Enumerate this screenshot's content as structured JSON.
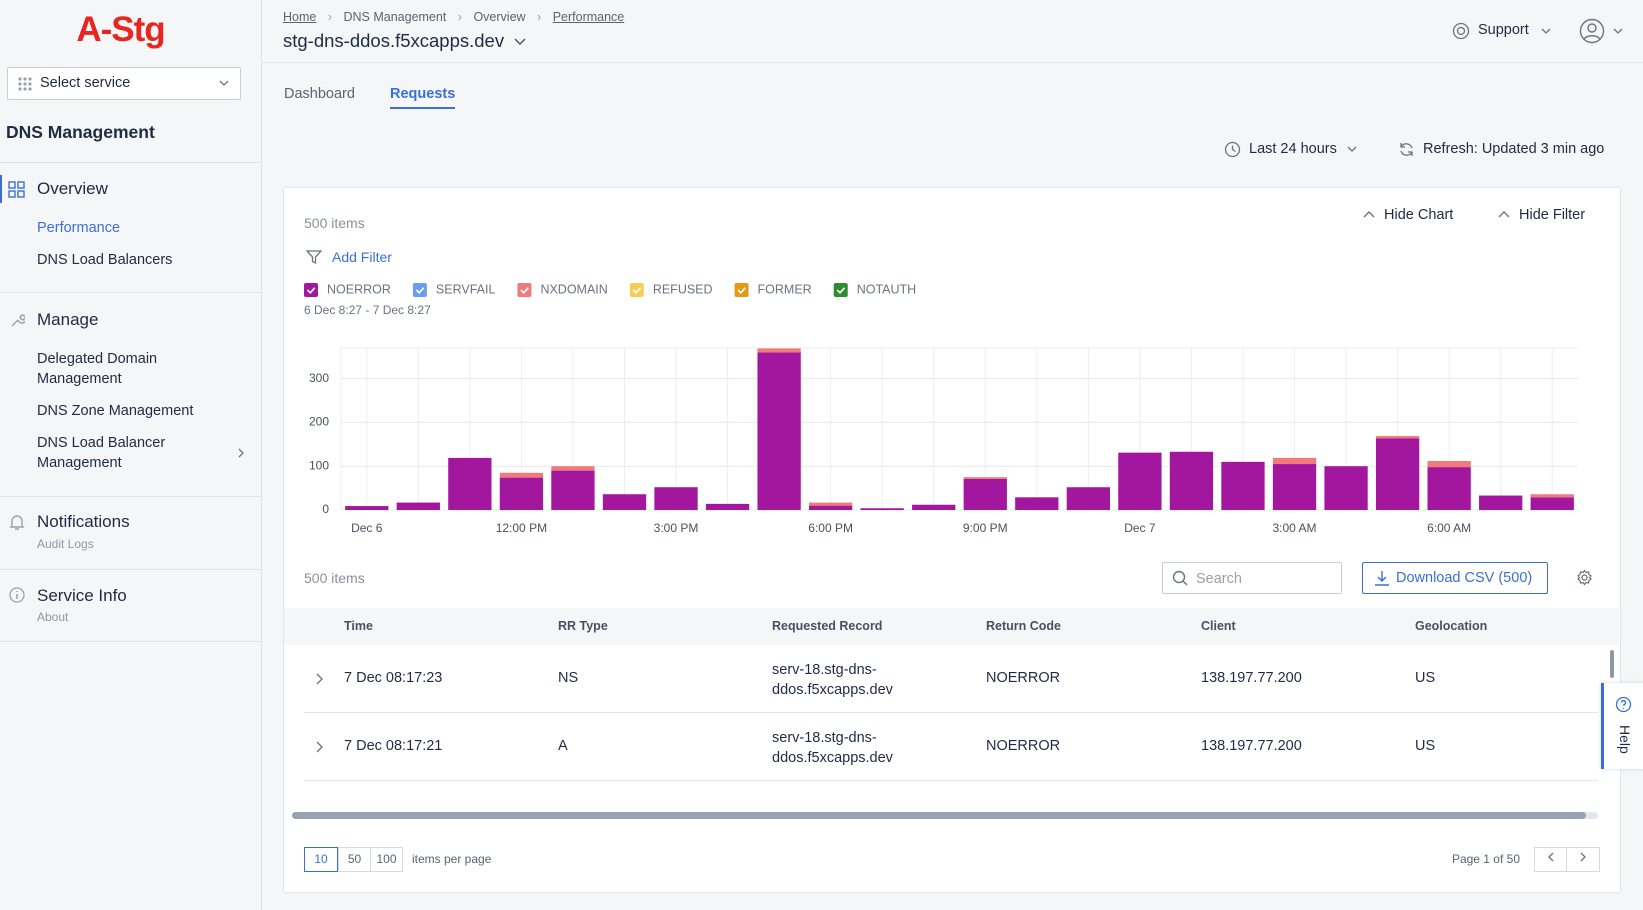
{
  "sidebar": {
    "logo": "A-Stg",
    "service_select": "Select service",
    "title": "DNS Management",
    "groups": [
      {
        "label": "Overview",
        "items": [
          "Performance",
          "DNS Load Balancers"
        ]
      },
      {
        "label": "Manage",
        "items": [
          "Delegated Domain Management",
          "DNS Zone Management",
          "DNS Load Balancer Management"
        ]
      },
      {
        "label": "Notifications",
        "sub": "Audit Logs"
      },
      {
        "label": "Service Info",
        "sub": "About"
      }
    ]
  },
  "header": {
    "breadcrumbs": [
      "Home",
      "DNS Management",
      "Overview",
      "Performance"
    ],
    "title": "stg-dns-ddos.f5xcapps.dev",
    "support": "Support"
  },
  "tabs": [
    "Dashboard",
    "Requests"
  ],
  "toolbar": {
    "time_range": "Last 24 hours",
    "refresh": "Refresh: Updated 3 min ago"
  },
  "panel": {
    "items_count": "500 items",
    "hide_chart": "Hide Chart",
    "hide_filter": "Hide Filter",
    "add_filter": "Add Filter"
  },
  "chart_data": {
    "type": "bar",
    "stacked": true,
    "subtitle": "6 Dec 8:27 - 7 Dec 8:27",
    "categories": [
      "Dec 6",
      null,
      null,
      "12:00 PM",
      null,
      null,
      "3:00 PM",
      null,
      null,
      "6:00 PM",
      null,
      null,
      "9:00 PM",
      null,
      null,
      "Dec 7",
      null,
      null,
      "3:00 AM",
      null,
      null,
      "6:00 AM",
      null,
      null
    ],
    "series": [
      {
        "name": "NOERROR",
        "color": "#a2179e",
        "values": [
          9,
          17,
          119,
          74,
          90,
          36,
          52,
          14,
          360,
          10,
          4,
          12,
          71,
          29,
          52,
          131,
          133,
          110,
          105,
          100,
          164,
          98,
          33,
          29
        ]
      },
      {
        "name": "SERVFAIL",
        "color": "#6b9df0",
        "values": [
          0,
          0,
          0,
          0,
          0,
          0,
          0,
          0,
          0,
          0,
          0,
          0,
          0,
          0,
          0,
          0,
          0,
          0,
          0,
          0,
          0,
          0,
          0,
          0
        ]
      },
      {
        "name": "NXDOMAIN",
        "color": "#f07b7b",
        "values": [
          0,
          0,
          0,
          11,
          10,
          0,
          0,
          0,
          9,
          7,
          0,
          0,
          4,
          0,
          0,
          0,
          0,
          0,
          14,
          0,
          5,
          14,
          0,
          7
        ]
      },
      {
        "name": "REFUSED",
        "color": "#f5cf55",
        "values": [
          0,
          0,
          0,
          0,
          0,
          0,
          0,
          0,
          0,
          0,
          0,
          0,
          0,
          0,
          0,
          0,
          0,
          0,
          0,
          0,
          0,
          0,
          0,
          0
        ]
      },
      {
        "name": "FORMER",
        "color": "#e39a14",
        "values": [
          0,
          0,
          0,
          0,
          0,
          0,
          0,
          0,
          0,
          0,
          0,
          0,
          0,
          0,
          0,
          0,
          0,
          0,
          0,
          0,
          0,
          0,
          0,
          0
        ]
      },
      {
        "name": "NOTAUTH",
        "color": "#2e8b2e",
        "values": [
          0,
          0,
          0,
          0,
          0,
          0,
          0,
          0,
          0,
          0,
          0,
          0,
          0,
          0,
          0,
          0,
          0,
          0,
          0,
          0,
          0,
          0,
          0,
          0
        ]
      }
    ],
    "ylim": [
      0,
      370
    ],
    "yticks": [
      0,
      100,
      200,
      300
    ],
    "grid": true
  },
  "table": {
    "items_count": "500 items",
    "search_placeholder": "Search",
    "download": "Download CSV (500)",
    "columns": [
      "Time",
      "RR Type",
      "Requested Record",
      "Return Code",
      "Client",
      "Geolocation"
    ],
    "rows": [
      [
        "7 Dec 08:17:23",
        "NS",
        "serv-18.stg-dns-ddos.f5xcapps.dev",
        "NOERROR",
        "138.197.77.200",
        "US"
      ],
      [
        "7 Dec 08:17:21",
        "A",
        "serv-18.stg-dns-ddos.f5xcapps.dev",
        "NOERROR",
        "138.197.77.200",
        "US"
      ]
    ]
  },
  "pagination": {
    "page_sizes": [
      "10",
      "50",
      "100"
    ],
    "per_page": "items per page",
    "page": "Page 1 of 50"
  },
  "help": "Help"
}
